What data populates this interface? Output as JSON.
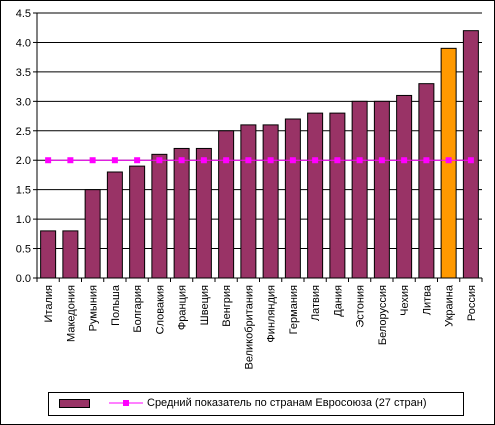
{
  "chart_data": {
    "type": "bar",
    "categories": [
      "Италия",
      "Македония",
      "Румыния",
      "Польша",
      "Болгария",
      "Словакия",
      "Франция",
      "Швеция",
      "Венгрия",
      "Великобритания",
      "Финляндия",
      "Германия",
      "Латвия",
      "Дания",
      "Эстония",
      "Белоруссия",
      "Чехия",
      "Литва",
      "Украина",
      "Россия"
    ],
    "series": [
      {
        "values": [
          0.8,
          0.8,
          1.5,
          1.8,
          1.9,
          2.1,
          2.2,
          2.2,
          2.5,
          2.6,
          2.6,
          2.7,
          2.8,
          2.8,
          3.0,
          3.0,
          3.1,
          3.3,
          3.9,
          4.2
        ],
        "color": "#993366",
        "highlight": {
          "category": "Украина",
          "color": "#FF9900"
        }
      },
      {
        "name": "Средний показатель по странам Евросоюза (27 стран)",
        "type": "line",
        "values": [
          2,
          2,
          2,
          2,
          2,
          2,
          2,
          2,
          2,
          2,
          2,
          2,
          2,
          2,
          2,
          2,
          2,
          2,
          2,
          2
        ],
        "color": "#FF00FF",
        "marker": "square"
      }
    ],
    "yticks": [
      "0.0",
      "0.5",
      "1.0",
      "1.5",
      "2.0",
      "2.5",
      "3.0",
      "3.5",
      "4.0",
      "4.5"
    ],
    "ylim": [
      0,
      4.5
    ],
    "grid": "horizontal",
    "legend_position": "bottom"
  }
}
